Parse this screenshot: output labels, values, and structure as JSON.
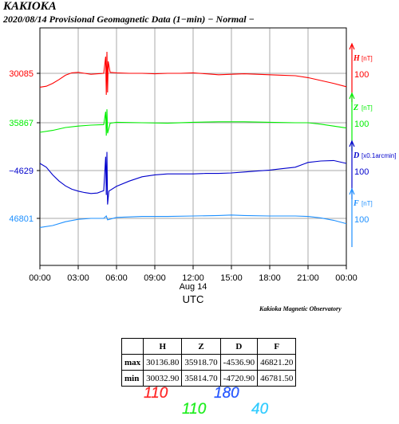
{
  "title": {
    "station": "KAKIOKA",
    "subtitle": "2020/08/14  Provisional Geomagnetic Data (1−min)  − Normal −"
  },
  "observatory": "Kakioka Magnetic Observatory",
  "chart_data": {
    "type": "line",
    "x_ticks": [
      "00:00",
      "03:00",
      "06:00",
      "09:00",
      "12:00",
      "15:00",
      "18:00",
      "21:00",
      "00:00"
    ],
    "x_range_hours": [
      0,
      24
    ],
    "date_label": "Aug 14",
    "xlabel": "UTC",
    "grid": true,
    "series": [
      {
        "name": "H",
        "unit": "[nT]",
        "color": "#ff0000",
        "base_label": "30085",
        "scale_label": "100",
        "scale_nT": 100,
        "points": [
          [
            0,
            30056
          ],
          [
            0.5,
            30058
          ],
          [
            1,
            30064
          ],
          [
            1.5,
            30072
          ],
          [
            2,
            30081
          ],
          [
            2.5,
            30086
          ],
          [
            3,
            30087
          ],
          [
            3.5,
            30085
          ],
          [
            4,
            30083
          ],
          [
            4.5,
            30084
          ],
          [
            5,
            30085
          ],
          [
            5.15,
            30120
          ],
          [
            5.2,
            30040
          ],
          [
            5.25,
            30130
          ],
          [
            5.3,
            30045
          ],
          [
            5.35,
            30110
          ],
          [
            5.5,
            30087
          ],
          [
            6,
            30086
          ],
          [
            7,
            30085
          ],
          [
            8,
            30085
          ],
          [
            9,
            30084
          ],
          [
            10,
            30085
          ],
          [
            11,
            30085
          ],
          [
            12,
            30086
          ],
          [
            13,
            30084
          ],
          [
            14,
            30082
          ],
          [
            15,
            30083
          ],
          [
            16,
            30084
          ],
          [
            17,
            30083
          ],
          [
            18,
            30082
          ],
          [
            19,
            30081
          ],
          [
            20,
            30080
          ],
          [
            21,
            30076
          ],
          [
            22,
            30070
          ],
          [
            23,
            30064
          ],
          [
            24,
            30057
          ]
        ]
      },
      {
        "name": "Z",
        "unit": "[nT]",
        "color": "#00ee00",
        "base_label": "35867",
        "scale_label": "100",
        "scale_nT": 100,
        "points": [
          [
            0,
            35847
          ],
          [
            1,
            35851
          ],
          [
            2,
            35857
          ],
          [
            3,
            35860
          ],
          [
            4,
            35862
          ],
          [
            5,
            35863
          ],
          [
            5.15,
            35890
          ],
          [
            5.2,
            35840
          ],
          [
            5.25,
            35895
          ],
          [
            5.3,
            35845
          ],
          [
            5.5,
            35866
          ],
          [
            6,
            35868
          ],
          [
            8,
            35867
          ],
          [
            10,
            35866
          ],
          [
            12,
            35868
          ],
          [
            14,
            35869
          ],
          [
            16,
            35869
          ],
          [
            18,
            35868
          ],
          [
            20,
            35867
          ],
          [
            21,
            35867
          ],
          [
            22,
            35864
          ],
          [
            23,
            35860
          ],
          [
            24,
            35856
          ]
        ]
      },
      {
        "name": "D",
        "unit": "[x0.1arcmin]",
        "color": "#0000cc",
        "base_label": "−4629",
        "scale_label": "100",
        "scale_nT": 100,
        "points": [
          [
            0,
            -4614
          ],
          [
            0.5,
            -4622
          ],
          [
            1,
            -4638
          ],
          [
            1.5,
            -4651
          ],
          [
            2,
            -4661
          ],
          [
            2.5,
            -4668
          ],
          [
            3,
            -4672
          ],
          [
            3.5,
            -4675
          ],
          [
            4,
            -4677
          ],
          [
            4.5,
            -4676
          ],
          [
            5,
            -4671
          ],
          [
            5.15,
            -4600
          ],
          [
            5.2,
            -4680
          ],
          [
            5.25,
            -4590
          ],
          [
            5.3,
            -4700
          ],
          [
            5.4,
            -4672
          ],
          [
            6,
            -4662
          ],
          [
            7,
            -4651
          ],
          [
            8,
            -4642
          ],
          [
            9,
            -4638
          ],
          [
            10,
            -4636
          ],
          [
            11,
            -4636
          ],
          [
            12,
            -4636
          ],
          [
            13,
            -4635
          ],
          [
            14,
            -4635
          ],
          [
            15,
            -4634
          ],
          [
            16,
            -4632
          ],
          [
            17,
            -4630
          ],
          [
            18,
            -4628
          ],
          [
            19,
            -4625
          ],
          [
            20,
            -4622
          ],
          [
            21,
            -4612
          ],
          [
            22,
            -4609
          ],
          [
            23,
            -4608
          ],
          [
            24,
            -4614
          ]
        ]
      },
      {
        "name": "F",
        "unit": "[nT]",
        "color": "#1e90ff",
        "base_label": "46801",
        "scale_label": "100",
        "scale_nT": 100,
        "points": [
          [
            0,
            46782
          ],
          [
            1,
            46786
          ],
          [
            2,
            46794
          ],
          [
            3,
            46799
          ],
          [
            4,
            46801
          ],
          [
            5,
            46801
          ],
          [
            5.2,
            46806
          ],
          [
            5.3,
            46798
          ],
          [
            6,
            46803
          ],
          [
            8,
            46805
          ],
          [
            10,
            46805
          ],
          [
            12,
            46806
          ],
          [
            14,
            46807
          ],
          [
            15,
            46808
          ],
          [
            16,
            46807
          ],
          [
            18,
            46806
          ],
          [
            20,
            46806
          ],
          [
            21,
            46805
          ],
          [
            22,
            46802
          ],
          [
            23,
            46797
          ],
          [
            24,
            46790
          ]
        ]
      }
    ]
  },
  "table": {
    "headers": [
      "",
      "H",
      "Z",
      "D",
      "F"
    ],
    "rows": [
      {
        "label": "max",
        "values": [
          "30136.80",
          "35918.70",
          "-4536.90",
          "46821.20"
        ]
      },
      {
        "label": "min",
        "values": [
          "30032.90",
          "35814.70",
          "-4720.90",
          "46781.50"
        ]
      }
    ]
  },
  "ranges": [
    {
      "text": "110",
      "color": "#ff2a2a"
    },
    {
      "text": "110",
      "color": "#22ee22"
    },
    {
      "text": "180",
      "color": "#2a5aff"
    },
    {
      "text": "40",
      "color": "#33ccff"
    }
  ]
}
